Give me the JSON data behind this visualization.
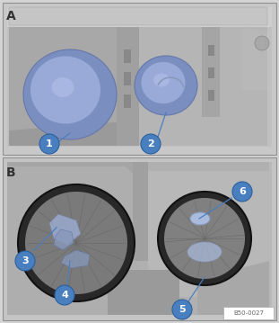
{
  "fig_width": 3.11,
  "fig_height": 3.59,
  "dpi": 100,
  "bg_color": "#d4d4d4",
  "panel_border_color": "#909090",
  "panel_A_bg": "#c8c8c8",
  "panel_B_bg": "#c4c4c4",
  "label_A": "A",
  "label_B": "B",
  "watermark": "B50-0027",
  "callout_fill": "#4a7fbf",
  "callout_border": "#2a5f9e",
  "callout_text_color": "#ffffff",
  "callout_font_size": 8,
  "label_font_size": 10,
  "headlight_base": "#a0a0a0",
  "headlight_mid": "#b0b0b0",
  "headlight_light": "#bebebe",
  "headlight_dark": "#888888",
  "cap_blue_outer": "#7a8fc0",
  "cap_blue_inner": "#9aaad8",
  "cap_blue_light": "#b0c0e8",
  "ring_black": "#282828",
  "ring_inner": "#7a7a7a"
}
